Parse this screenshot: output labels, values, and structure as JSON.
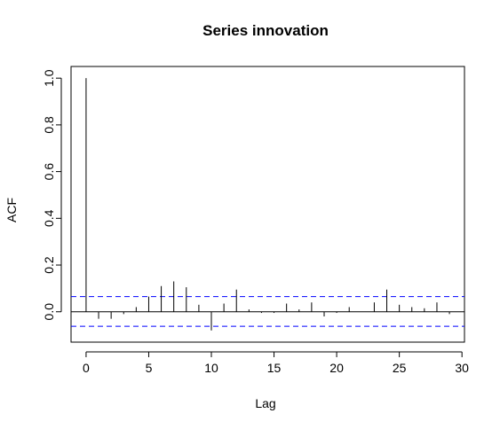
{
  "chart_data": {
    "type": "bar",
    "title": "Series  innovation",
    "xlabel": "Lag",
    "ylabel": "ACF",
    "xlim": [
      -1.2,
      30.2
    ],
    "ylim": [
      -0.13,
      1.05
    ],
    "x_ticks": [
      0,
      5,
      10,
      15,
      20,
      25,
      30
    ],
    "y_ticks": [
      0.0,
      0.2,
      0.4,
      0.6,
      0.8,
      1.0
    ],
    "x_tick_labels": [
      "0",
      "5",
      "10",
      "15",
      "20",
      "25",
      "30"
    ],
    "y_tick_labels": [
      "0.0",
      "0.2",
      "0.4",
      "0.6",
      "0.8",
      "1.0"
    ],
    "lags": [
      0,
      1,
      2,
      3,
      4,
      5,
      6,
      7,
      8,
      9,
      10,
      11,
      12,
      13,
      14,
      15,
      16,
      17,
      18,
      19,
      20,
      21,
      22,
      23,
      24,
      25,
      26,
      27,
      28,
      29
    ],
    "values": [
      1.0,
      -0.03,
      -0.03,
      -0.01,
      0.02,
      0.065,
      0.11,
      0.13,
      0.105,
      0.03,
      -0.08,
      0.035,
      0.095,
      0.01,
      -0.005,
      -0.005,
      0.035,
      0.01,
      0.04,
      -0.02,
      -0.005,
      0.02,
      0.0,
      0.04,
      0.095,
      0.03,
      0.02,
      0.015,
      0.04,
      -0.01
    ],
    "confidence_bounds": [
      0.065,
      -0.062
    ],
    "bound_color": "#0000ff",
    "line_color": "#000000"
  }
}
